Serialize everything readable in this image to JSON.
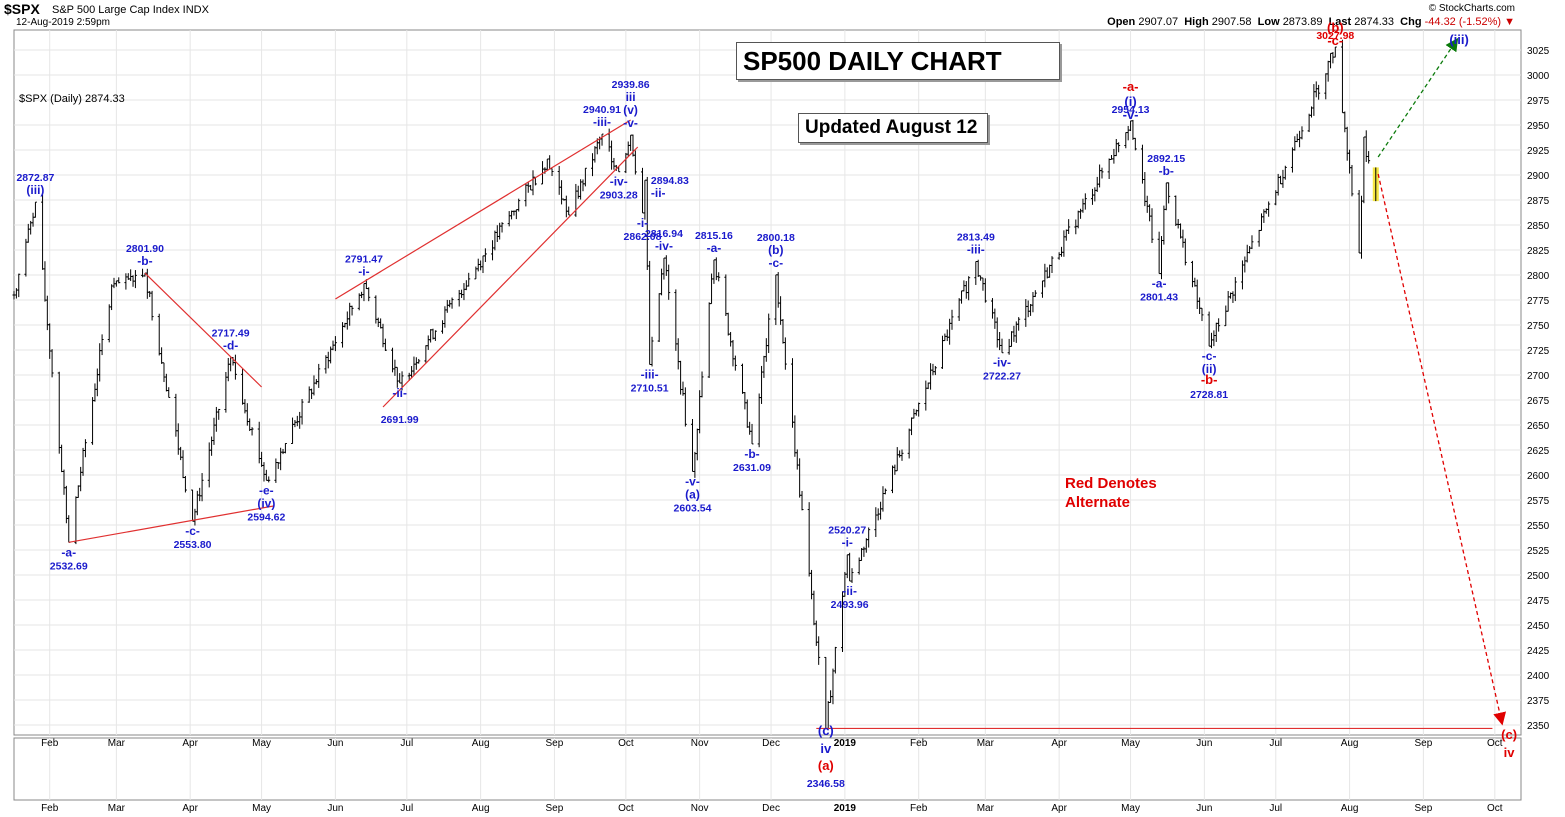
{
  "header": {
    "symbol": "$SPX",
    "description": "S&P 500 Large Cap Index  INDX",
    "datestamp": "12-Aug-2019 2:59pm",
    "copyright": "© StockCharts.com",
    "open_label": "Open",
    "open": "2907.07",
    "high_label": "High",
    "high": "2907.58",
    "low_label": "Low",
    "low": "2873.89",
    "last_label": "Last",
    "last": "2874.33",
    "chg_label": "Chg",
    "chg": "-44.32 (-1.52%)"
  },
  "series_label": "$SPX (Daily) 2874.33",
  "title": "SP500 DAILY CHART",
  "updated": "Updated August 12",
  "alternate_note": [
    "Red Denotes",
    "Alternate"
  ],
  "colors": {
    "wave": "#1a1acc",
    "alternate": "#e00000",
    "trendline": "#e03030",
    "up_arrow": "#0a7a0a",
    "highlight": "#f5e642"
  },
  "chart_data": {
    "type": "ohlc",
    "title": "SP500 DAILY CHART",
    "ylim": [
      2340,
      3045
    ],
    "y_ticks": [
      2350,
      2375,
      2400,
      2425,
      2450,
      2475,
      2500,
      2525,
      2550,
      2575,
      2600,
      2625,
      2650,
      2675,
      2700,
      2725,
      2750,
      2775,
      2800,
      2825,
      2850,
      2875,
      2900,
      2925,
      2950,
      2975,
      3000,
      3025
    ],
    "x_ticks": [
      "Feb",
      "Mar",
      "Apr",
      "May",
      "Jun",
      "Jul",
      "Aug",
      "Sep",
      "Oct",
      "Nov",
      "Dec",
      "2019",
      "Feb",
      "Mar",
      "Apr",
      "May",
      "Jun",
      "Jul",
      "Aug",
      "Sep",
      "Oct"
    ],
    "x_range": [
      "2018-01-17",
      "2019-10-12"
    ],
    "grid": true,
    "anchors": [
      [
        "2018-01-17",
        2780
      ],
      [
        "2018-01-26",
        2872.87
      ],
      [
        "2018-02-09",
        2532.69
      ],
      [
        "2018-02-27",
        2789
      ],
      [
        "2018-03-13",
        2801.9
      ],
      [
        "2018-04-02",
        2553.8
      ],
      [
        "2018-04-18",
        2717.49
      ],
      [
        "2018-05-03",
        2594.62
      ],
      [
        "2018-06-13",
        2791.47
      ],
      [
        "2018-06-28",
        2691.99
      ],
      [
        "2018-08-29",
        2916
      ],
      [
        "2018-09-07",
        2860
      ],
      [
        "2018-09-21",
        2940.91
      ],
      [
        "2018-09-28",
        2903.28
      ],
      [
        "2018-10-03",
        2939.86
      ],
      [
        "2018-10-08",
        2862.08
      ],
      [
        "2018-10-09",
        2894.83
      ],
      [
        "2018-10-11",
        2710.51
      ],
      [
        "2018-10-17",
        2816.94
      ],
      [
        "2018-10-29",
        2603.54
      ],
      [
        "2018-11-07",
        2815.16
      ],
      [
        "2018-11-23",
        2631.09
      ],
      [
        "2018-12-03",
        2800.18
      ],
      [
        "2018-12-24",
        2346.58
      ],
      [
        "2019-01-02",
        2520.27
      ],
      [
        "2019-01-03",
        2493.96
      ],
      [
        "2019-02-25",
        2813.49
      ],
      [
        "2019-03-08",
        2722.27
      ],
      [
        "2019-05-01",
        2954.13
      ],
      [
        "2019-05-13",
        2801.43
      ],
      [
        "2019-05-16",
        2892.15
      ],
      [
        "2019-06-03",
        2728.81
      ],
      [
        "2019-07-26",
        3027.98
      ],
      [
        "2019-08-05",
        2822
      ],
      [
        "2019-08-07",
        2938
      ],
      [
        "2019-08-12",
        2874.33
      ]
    ],
    "wave_labels": [
      {
        "date": "2018-01-26",
        "price": 2872.87,
        "lines": [
          "2872.87",
          "(iii)"
        ],
        "color": "wave",
        "pos": "above"
      },
      {
        "date": "2018-02-09",
        "price": 2532.69,
        "lines": [
          "-a-",
          "2532.69"
        ],
        "color": "wave",
        "pos": "below"
      },
      {
        "date": "2018-03-13",
        "price": 2801.9,
        "lines": [
          "2801.90",
          "-b-"
        ],
        "color": "wave",
        "pos": "above"
      },
      {
        "date": "2018-04-02",
        "price": 2553.8,
        "lines": [
          "-c-",
          "2553.80"
        ],
        "color": "wave",
        "pos": "below"
      },
      {
        "date": "2018-04-18",
        "price": 2717.49,
        "lines": [
          "2717.49",
          "-d-"
        ],
        "color": "wave",
        "pos": "above"
      },
      {
        "date": "2018-05-03",
        "price": 2594.62,
        "lines": [
          "-e-",
          "(iv)",
          "2594.62"
        ],
        "color": "wave",
        "pos": "below"
      },
      {
        "date": "2018-06-13",
        "price": 2791.47,
        "lines": [
          "2791.47",
          "-i-"
        ],
        "color": "wave",
        "pos": "above"
      },
      {
        "date": "2018-06-28",
        "price": 2691.99,
        "lines": [
          "-ii-",
          "",
          "2691.99"
        ],
        "color": "wave",
        "pos": "below"
      },
      {
        "date": "2018-09-21",
        "price": 2940.91,
        "lines": [
          "2940.91",
          "-iii-"
        ],
        "color": "wave",
        "pos": "above"
      },
      {
        "date": "2018-09-28",
        "price": 2903.28,
        "lines": [
          "-iv-",
          "2903.28"
        ],
        "color": "wave",
        "pos": "below"
      },
      {
        "date": "2018-10-03",
        "price": 2939.86,
        "lines": [
          "2939.86",
          "iii",
          "(v)",
          "-v-"
        ],
        "color": "wave",
        "pos": "above"
      },
      {
        "date": "2018-10-09",
        "price": 2894.83,
        "lines": [
          "2894.83",
          "-ii-"
        ],
        "color": "wave",
        "pos": "right"
      },
      {
        "date": "2018-10-08",
        "price": 2862.08,
        "lines": [
          "-i-",
          "2862.08"
        ],
        "color": "wave",
        "pos": "below"
      },
      {
        "date": "2018-10-11",
        "price": 2710.51,
        "lines": [
          "-iii-",
          "2710.51"
        ],
        "color": "wave",
        "pos": "below"
      },
      {
        "date": "2018-10-17",
        "price": 2816.94,
        "lines": [
          "2816.94",
          "-iv-"
        ],
        "color": "wave",
        "pos": "above"
      },
      {
        "date": "2018-10-29",
        "price": 2603.54,
        "lines": [
          "-v-",
          "(a)",
          "2603.54"
        ],
        "color": "wave",
        "pos": "below"
      },
      {
        "date": "2018-11-07",
        "price": 2815.16,
        "lines": [
          "2815.16",
          "-a-"
        ],
        "color": "wave",
        "pos": "above"
      },
      {
        "date": "2018-11-23",
        "price": 2631.09,
        "lines": [
          "-b-",
          "2631.09"
        ],
        "color": "wave",
        "pos": "below"
      },
      {
        "date": "2018-12-03",
        "price": 2800.18,
        "lines": [
          "2800.18",
          "(b)",
          "-c-"
        ],
        "color": "wave",
        "pos": "above"
      },
      {
        "date": "2019-01-02",
        "price": 2520.27,
        "lines": [
          "2520.27",
          "-i-"
        ],
        "color": "wave",
        "pos": "above"
      },
      {
        "date": "2019-01-03",
        "price": 2493.96,
        "lines": [
          "-ii-",
          "2493.96"
        ],
        "color": "wave",
        "pos": "below"
      },
      {
        "date": "2019-02-25",
        "price": 2813.49,
        "lines": [
          "2813.49",
          "-iii-"
        ],
        "color": "wave",
        "pos": "above"
      },
      {
        "date": "2019-03-08",
        "price": 2722.27,
        "lines": [
          "-iv-",
          "2722.27"
        ],
        "color": "wave",
        "pos": "below"
      },
      {
        "date": "2019-05-01",
        "price": 2954.13,
        "lines": [
          "2954.13"
        ],
        "color": "wave",
        "pos": "above"
      },
      {
        "date": "2019-05-16",
        "price": 2892.15,
        "lines": [
          "2892.15",
          "-b-"
        ],
        "color": "wave",
        "pos": "above"
      },
      {
        "date": "2019-05-13",
        "price": 2801.43,
        "lines": [
          "-a-",
          "2801.43"
        ],
        "color": "wave",
        "pos": "below"
      },
      {
        "date": "2019-06-03",
        "price": 2728.81,
        "lines": [
          "-c-",
          "(ii)"
        ],
        "color": "wave",
        "pos": "below"
      },
      {
        "date": "2019-07-26",
        "price": 3027.98,
        "lines": [
          "3027.98"
        ],
        "color": "alternate",
        "pos": "above"
      }
    ],
    "extra_labels": [
      {
        "text": "-a-",
        "color": "alternate"
      },
      {
        "text": "(i)",
        "color": "wave"
      },
      {
        "text": "-v-",
        "color": "wave"
      },
      {
        "text": "-b-",
        "color": "alternate"
      },
      {
        "text": "2728.81",
        "color": "wave"
      },
      {
        "text": "(b)",
        "color": "alternate"
      },
      {
        "text": "-c-",
        "color": "alternate"
      },
      {
        "text": "(iii)",
        "color": "wave"
      },
      {
        "text": "(c)",
        "color": "wave"
      },
      {
        "text": "iv",
        "color": "wave"
      },
      {
        "text": "(a)",
        "color": "alternate"
      },
      {
        "text": "2346.58",
        "color": "wave"
      },
      {
        "text": "(c)",
        "color": "alternate"
      },
      {
        "text": "iv",
        "color": "alternate"
      }
    ],
    "trendlines": [
      [
        [
          "2018-02-09",
          2532.69
        ],
        [
          "2018-05-06",
          2569
        ]
      ],
      [
        [
          "2018-03-13",
          2801.9
        ],
        [
          "2018-05-01",
          2688
        ]
      ],
      [
        [
          "2018-06-01",
          2776
        ],
        [
          "2018-10-03",
          2955
        ]
      ],
      [
        [
          "2018-06-21",
          2668
        ],
        [
          "2018-10-06",
          2928
        ]
      ],
      [
        [
          "2018-12-20",
          2346.58
        ],
        [
          "2019-09-30",
          2346.58
        ]
      ]
    ],
    "projections": [
      {
        "from": [
          "2019-08-13",
          2918
        ],
        "to": [
          "2019-09-15",
          3035
        ],
        "color": "up_arrow",
        "label": "(iii)"
      },
      {
        "from": [
          "2019-08-13",
          2901
        ],
        "to": [
          "2019-10-04",
          2352
        ],
        "color": "alternate",
        "label": "(c) iv"
      }
    ]
  }
}
